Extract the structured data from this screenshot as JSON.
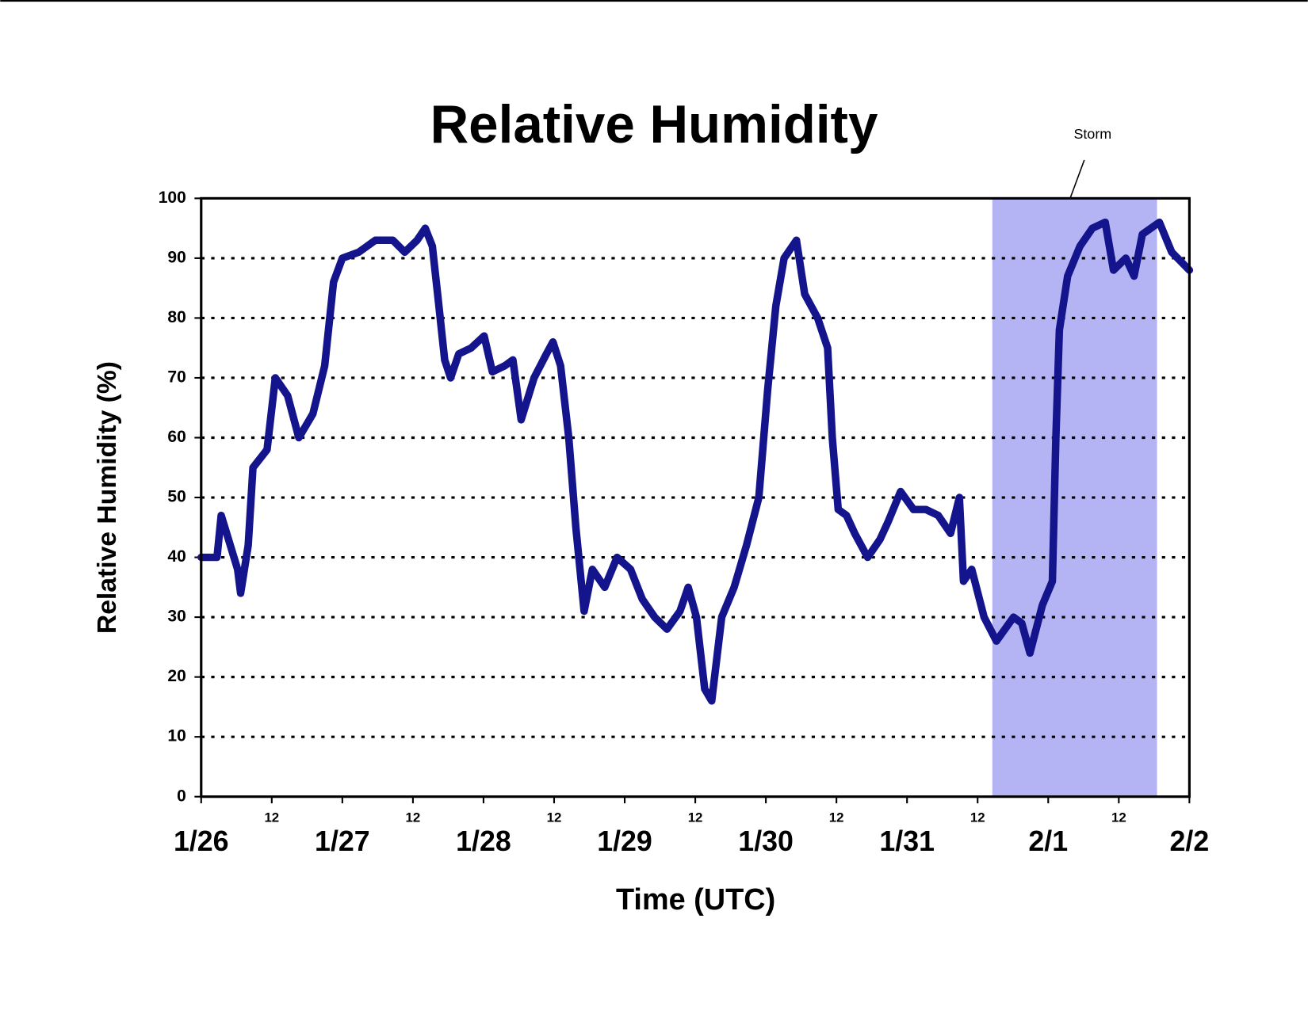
{
  "chart_data": {
    "type": "line",
    "title": "Relative Humidity",
    "x_label": "Time (UTC)",
    "y_label": "Relative Humidity (%)",
    "color": "#14148c",
    "xlim": [
      0,
      168
    ],
    "ylim": [
      0,
      100
    ],
    "yticks": [
      0,
      10,
      20,
      30,
      40,
      50,
      60,
      70,
      80,
      90,
      100
    ],
    "xticks": [
      {
        "value": 0,
        "label": "1/26"
      },
      {
        "value": 12,
        "label": "12"
      },
      {
        "value": 24,
        "label": "1/27"
      },
      {
        "value": 36,
        "label": "12"
      },
      {
        "value": 48,
        "label": "1/28"
      },
      {
        "value": 60,
        "label": "12"
      },
      {
        "value": 72,
        "label": "1/29"
      },
      {
        "value": 84,
        "label": "12"
      },
      {
        "value": 96,
        "label": "1/30"
      },
      {
        "value": 108,
        "label": "12"
      },
      {
        "value": 120,
        "label": "1/31"
      },
      {
        "value": 132,
        "label": "12"
      },
      {
        "value": 144,
        "label": "2/1"
      },
      {
        "value": 156,
        "label": "12"
      },
      {
        "value": 168,
        "label": "2/2"
      }
    ],
    "grid": true,
    "annotation": {
      "text": "Storm",
      "span": [
        134.5,
        162.5
      ],
      "color": "#b4b4f5"
    },
    "x": [
      0,
      2.7,
      3.4,
      6.2,
      6.7,
      8,
      8.8,
      11.2,
      12.6,
      14.7,
      16.6,
      19,
      21,
      22.5,
      24,
      26.8,
      29.6,
      32.6,
      34.6,
      36.7,
      38.1,
      39.3,
      40.3,
      41.4,
      42.4,
      43.8,
      45.9,
      48.1,
      49.5,
      51.6,
      53,
      54.4,
      56.6,
      58.7,
      59.8,
      61.1,
      62.5,
      63.7,
      65.1,
      66.5,
      68.6,
      70.7,
      73,
      75,
      77.1,
      79.2,
      81.4,
      82.8,
      84.2,
      85.6,
      86.8,
      88.5,
      90.6,
      92.7,
      94.8,
      96.3,
      97.7,
      99.1,
      101.2,
      102.6,
      104.8,
      106.5,
      107.3,
      108.3,
      109.7,
      111.1,
      113.3,
      115.4,
      116.8,
      118.9,
      121.1,
      123.2,
      125.3,
      127.4,
      128.9,
      129.6,
      131,
      133.1,
      135.2,
      138.1,
      139.5,
      140.9,
      143,
      144.7,
      145.3,
      145.9,
      147.3,
      149.4,
      151.5,
      153.7,
      155.1,
      157.2,
      158.6,
      160,
      162.9,
      165,
      168
    ],
    "values": [
      40,
      40,
      47,
      38,
      34,
      42,
      55,
      58,
      70,
      67,
      60,
      64,
      72,
      86,
      90,
      91,
      93,
      93,
      91,
      93,
      95,
      92,
      83,
      73,
      70,
      74,
      75,
      77,
      71,
      72,
      73,
      63,
      70,
      74,
      76,
      72,
      60,
      45,
      31,
      38,
      35,
      40,
      38,
      33,
      30,
      28,
      31,
      35,
      30,
      18,
      16,
      30,
      35,
      42,
      50,
      68,
      82,
      90,
      93,
      84,
      80,
      75,
      60,
      48,
      47,
      44,
      40,
      43,
      46,
      51,
      48,
      48,
      47,
      44,
      50,
      36,
      38,
      30,
      26,
      30,
      29,
      24,
      32,
      36,
      60,
      78,
      87,
      92,
      95,
      96,
      88,
      90,
      87,
      94,
      96,
      91,
      88
    ]
  }
}
